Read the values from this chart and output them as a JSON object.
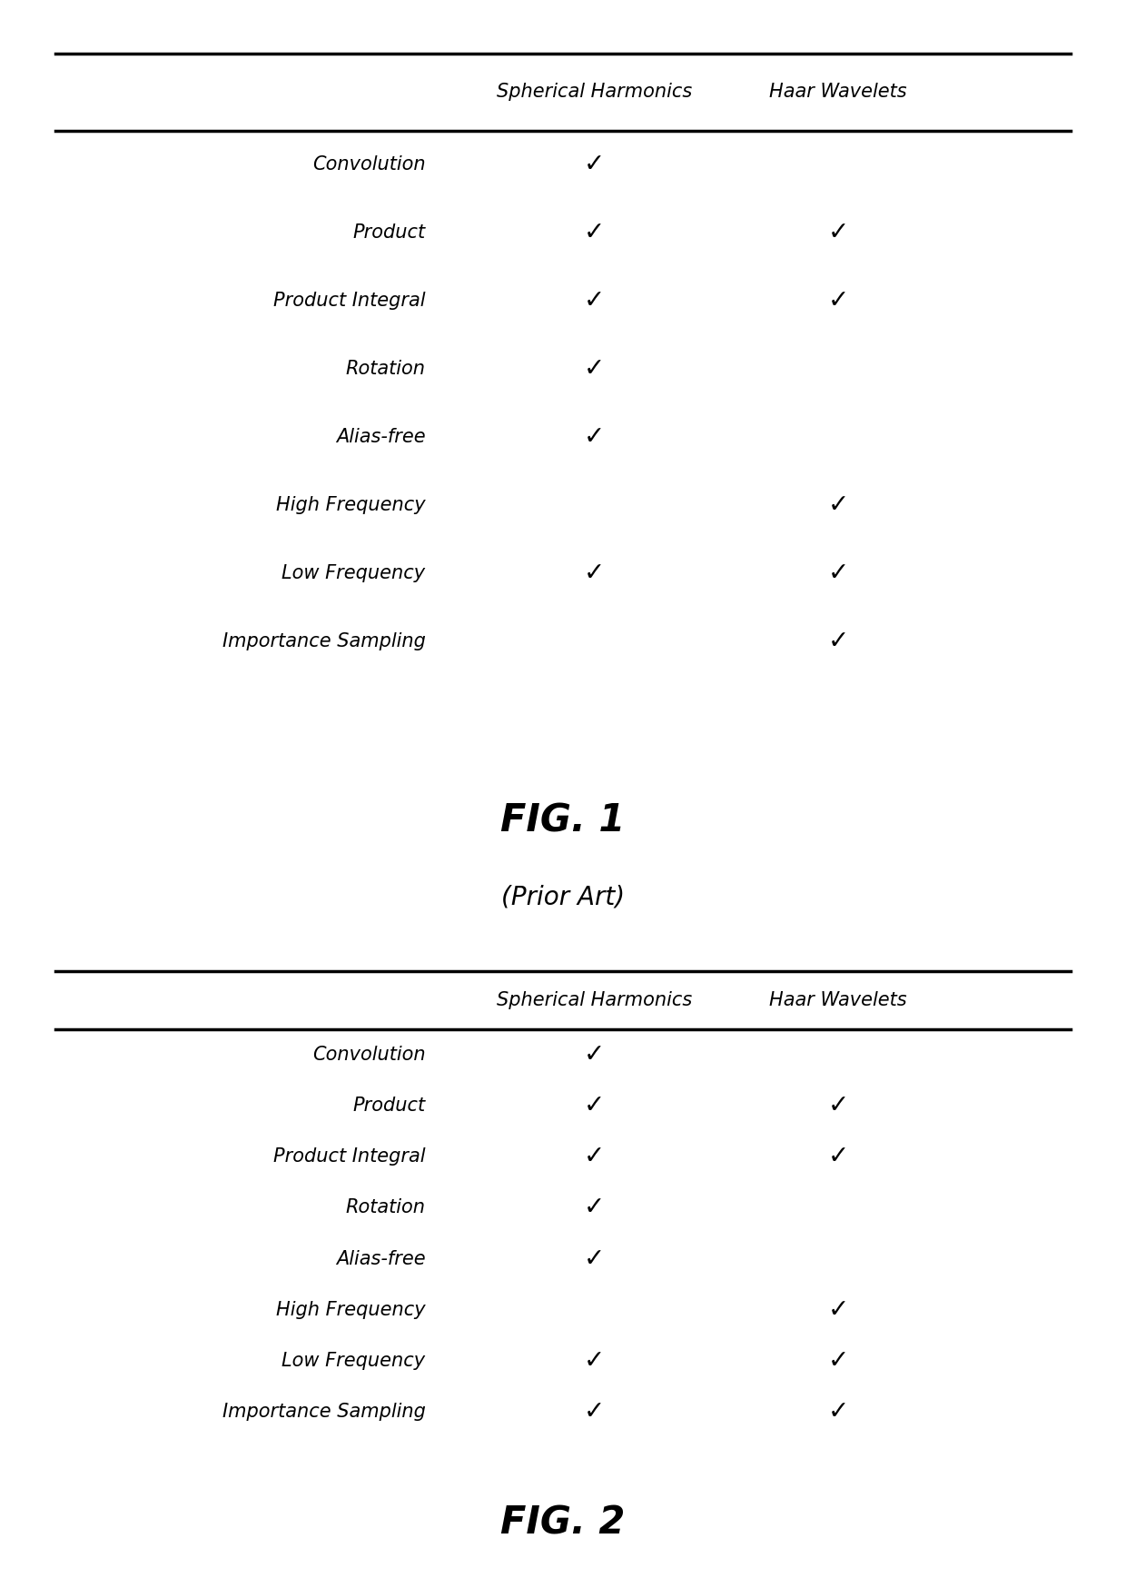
{
  "fig1": {
    "title": "FIG. 1",
    "subtitle": "(Prior Art)",
    "col_headers": [
      "Spherical Harmonics",
      "Haar Wavelets"
    ],
    "rows": [
      "Convolution",
      "Product",
      "Product Integral",
      "Rotation",
      "Alias-free",
      "High Frequency",
      "Low Frequency",
      "Importance Sampling"
    ],
    "sh_checks": [
      1,
      1,
      1,
      1,
      1,
      0,
      1,
      0
    ],
    "hw_checks": [
      0,
      1,
      1,
      0,
      0,
      1,
      1,
      1
    ]
  },
  "fig2": {
    "title": "FIG. 2",
    "col_headers": [
      "Spherical Harmonics",
      "Haar Wavelets"
    ],
    "rows": [
      "Convolution",
      "Product",
      "Product Integral",
      "Rotation",
      "Alias-free",
      "High Frequency",
      "Low Frequency",
      "Importance Sampling"
    ],
    "sh_checks": [
      1,
      1,
      1,
      1,
      1,
      0,
      1,
      1
    ],
    "hw_checks": [
      0,
      1,
      1,
      0,
      0,
      1,
      1,
      1
    ]
  },
  "background_color": "#ffffff",
  "text_color": "#000000",
  "line_color": "#000000",
  "row_label_fontsize": 15,
  "col_header_fontsize": 15,
  "check_fontsize": 20,
  "fig_label_fontsize": 30,
  "subtitle_fontsize": 20
}
